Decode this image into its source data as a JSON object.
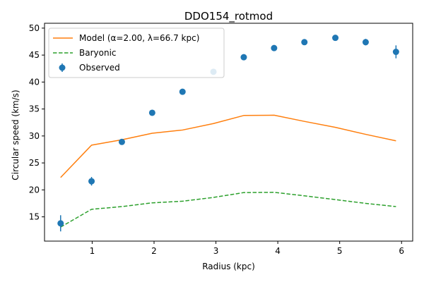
{
  "chart_data": {
    "type": "line",
    "title": "DDO154_rotmod",
    "xlabel": "Radius (kpc)",
    "ylabel": "Circular speed (km/s)",
    "xlim": [
      0.23,
      6.18
    ],
    "ylim": [
      10.5,
      50.9
    ],
    "xticks": [
      1,
      2,
      3,
      4,
      5,
      6
    ],
    "yticks": [
      15,
      20,
      25,
      30,
      35,
      40,
      45,
      50
    ],
    "legend_position": "top-left",
    "grid": false,
    "series": [
      {
        "name": "Model (α=2.00, λ=66.7 kpc)",
        "style": "solid",
        "color": "#ff7f0e",
        "x": [
          0.49,
          0.99,
          1.48,
          1.97,
          2.46,
          2.96,
          3.45,
          3.94,
          4.43,
          4.93,
          5.42,
          5.91
        ],
        "y": [
          22.3,
          28.3,
          29.3,
          30.5,
          31.1,
          32.3,
          33.8,
          33.85,
          32.7,
          31.6,
          30.3,
          29.1
        ]
      },
      {
        "name": "Baryonic",
        "style": "dashed",
        "color": "#2ca02c",
        "x": [
          0.49,
          0.99,
          1.48,
          1.97,
          2.46,
          2.96,
          3.45,
          3.94,
          4.43,
          4.93,
          5.42,
          5.91
        ],
        "y": [
          13.1,
          16.4,
          16.9,
          17.6,
          17.9,
          18.6,
          19.5,
          19.55,
          18.9,
          18.2,
          17.5,
          16.9
        ]
      },
      {
        "name": "Observed",
        "style": "errorbar",
        "color": "#1f77b4",
        "x": [
          0.49,
          0.99,
          1.48,
          1.97,
          2.46,
          2.96,
          3.45,
          3.94,
          4.43,
          4.93,
          5.42,
          5.91
        ],
        "y": [
          13.8,
          21.6,
          28.9,
          34.3,
          38.2,
          41.9,
          44.6,
          46.3,
          47.4,
          48.2,
          47.4,
          45.6
        ],
        "yerr": [
          1.5,
          0.8,
          0.5,
          0.4,
          0.3,
          0.4,
          0.3,
          0.4,
          0.4,
          0.5,
          0.6,
          1.2
        ]
      }
    ]
  }
}
